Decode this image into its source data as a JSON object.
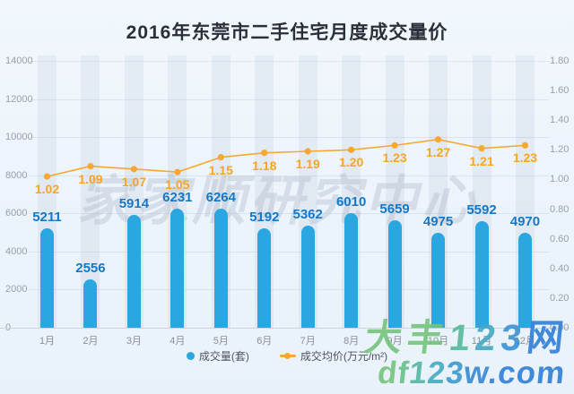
{
  "title": "2016年东莞市二手住宅月度成交量价",
  "chart_data": {
    "type": "bar",
    "subtype": "bar+line combo",
    "categories": [
      "1月",
      "2月",
      "3月",
      "4月",
      "5月",
      "6月",
      "7月",
      "8月",
      "9月",
      "10月",
      "11月",
      "12月"
    ],
    "series": [
      {
        "name": "成交量(套)",
        "type": "bar",
        "values": [
          5211,
          2556,
          5914,
          6231,
          6264,
          5192,
          5362,
          6010,
          5659,
          4975,
          5592,
          4970
        ],
        "labels": [
          "5211",
          "2556",
          "5914",
          "6231",
          "6264",
          "5192",
          "5362",
          "6010",
          "5659",
          "4975",
          "5592",
          "4970"
        ],
        "color": "#2aa7e1",
        "label_color": "#1478c8",
        "axis": "left"
      },
      {
        "name": "成交均价(万元/m²)",
        "type": "line",
        "values": [
          1.02,
          1.09,
          1.07,
          1.05,
          1.15,
          1.18,
          1.19,
          1.2,
          1.23,
          1.27,
          1.21,
          1.23
        ],
        "labels": [
          "1.02",
          "1.09",
          "1.07",
          "1.05",
          "1.15",
          "1.18",
          "1.19",
          "1.20",
          "1.23",
          "1.27",
          "1.21",
          "1.23"
        ],
        "color": "#f7a733",
        "label_color": "#f5a623",
        "axis": "right"
      }
    ],
    "y_axis_left": {
      "min": 0,
      "max": 14000,
      "step": 2000,
      "ticks": [
        "14000",
        "12000",
        "10000",
        "8000",
        "6000",
        "4000",
        "2000",
        "0"
      ]
    },
    "y_axis_right": {
      "min": 0,
      "max": 1.8,
      "step": 0.2,
      "ticks": [
        "1.80",
        "1.60",
        "1.40",
        "1.20",
        "1.00",
        "0.80",
        "0.60",
        "0.40",
        "0.20",
        "0.00"
      ]
    },
    "grid": true,
    "legend_position": "bottom"
  },
  "legend": {
    "items": [
      {
        "label": "成交量(套)",
        "marker": "circle",
        "color": "#2aa7e1"
      },
      {
        "label": "成交均价(万元/m²)",
        "marker": "line",
        "color": "#f7a733"
      }
    ]
  },
  "watermarks": {
    "center": {
      "text": "家家顺研究中心"
    },
    "brand_line1": {
      "text": "大丰123网",
      "char_colors": [
        "#74c47c",
        "#74c47c",
        "#58ba99",
        "#45a9c2",
        "#3b92d4",
        "#2f7ed8"
      ]
    },
    "brand_line2": {
      "text": "df123w.com",
      "char_colors": [
        "#74c47c",
        "#68c08a",
        "#55b7a2",
        "#47abc0",
        "#3d99cd",
        "#3589d6",
        "#2f7ed8",
        "#2f7ed8",
        "#2f7ed8",
        "#2f7ed8"
      ]
    }
  },
  "colors": {
    "background": "#ecf4fb",
    "bar": "#2aa7e1",
    "bar_label": "#1478c8",
    "line": "#f7a733",
    "line_label": "#f5a623",
    "axis_text": "#98a0a8",
    "title_text": "#2b2f38",
    "legend_text": "#4f555c"
  }
}
